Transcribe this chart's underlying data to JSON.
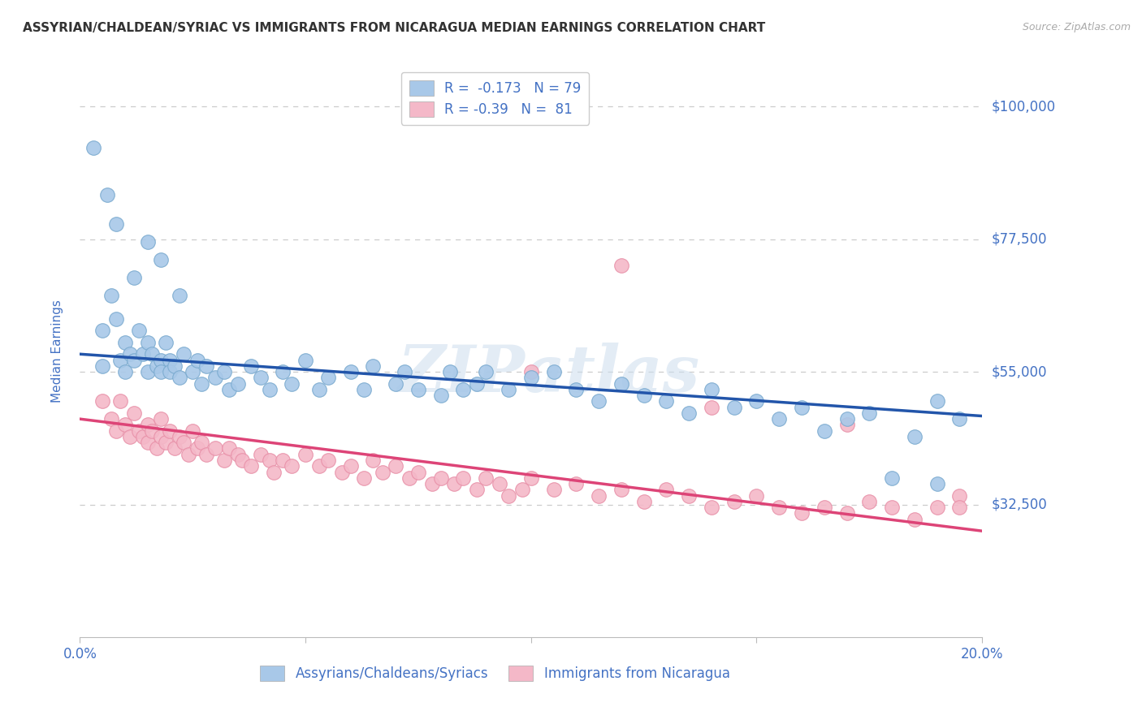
{
  "title": "ASSYRIAN/CHALDEAN/SYRIAC VS IMMIGRANTS FROM NICARAGUA MEDIAN EARNINGS CORRELATION CHART",
  "source": "Source: ZipAtlas.com",
  "ylabel": "Median Earnings",
  "x_min": 0.0,
  "x_max": 0.2,
  "y_min": 10000,
  "y_max": 107000,
  "y_ticks": [
    32500,
    55000,
    77500,
    100000
  ],
  "y_tick_labels": [
    "$32,500",
    "$55,000",
    "$77,500",
    "$100,000"
  ],
  "x_ticks": [
    0.0,
    0.05,
    0.1,
    0.15,
    0.2
  ],
  "blue_R": -0.173,
  "blue_N": 79,
  "pink_R": -0.39,
  "pink_N": 81,
  "blue_label": "Assyrians/Chaldeans/Syriacs",
  "pink_label": "Immigrants from Nicaragua",
  "blue_color": "#a8c8e8",
  "pink_color": "#f4b8c8",
  "blue_edge_color": "#7aaacf",
  "pink_edge_color": "#e890a8",
  "blue_line_color": "#2255aa",
  "pink_line_color": "#dd4477",
  "title_color": "#333333",
  "axis_label_color": "#4472c4",
  "tick_label_color": "#4472c4",
  "watermark_text": "ZIPatlas",
  "background_color": "#ffffff",
  "grid_color": "#cccccc",
  "blue_line_x0": 0.0,
  "blue_line_x1": 0.2,
  "blue_line_y0": 58000,
  "blue_line_y1": 47500,
  "pink_line_x0": 0.0,
  "pink_line_x1": 0.2,
  "pink_line_y0": 47000,
  "pink_line_y1": 28000,
  "blue_scatter_x": [
    0.005,
    0.005,
    0.007,
    0.008,
    0.009,
    0.01,
    0.01,
    0.011,
    0.012,
    0.013,
    0.014,
    0.015,
    0.015,
    0.016,
    0.017,
    0.018,
    0.018,
    0.019,
    0.02,
    0.02,
    0.021,
    0.022,
    0.023,
    0.025,
    0.026,
    0.027,
    0.028,
    0.03,
    0.032,
    0.033,
    0.035,
    0.038,
    0.04,
    0.042,
    0.045,
    0.047,
    0.05,
    0.053,
    0.055,
    0.06,
    0.063,
    0.065,
    0.07,
    0.072,
    0.075,
    0.08,
    0.082,
    0.085,
    0.088,
    0.09,
    0.095,
    0.1,
    0.105,
    0.11,
    0.115,
    0.12,
    0.125,
    0.13,
    0.135,
    0.14,
    0.145,
    0.15,
    0.155,
    0.16,
    0.165,
    0.17,
    0.175,
    0.18,
    0.185,
    0.19,
    0.195,
    0.003,
    0.006,
    0.008,
    0.012,
    0.015,
    0.018,
    0.022,
    0.19
  ],
  "blue_scatter_y": [
    62000,
    56000,
    68000,
    64000,
    57000,
    55000,
    60000,
    58000,
    57000,
    62000,
    58000,
    60000,
    55000,
    58000,
    56000,
    57000,
    55000,
    60000,
    57000,
    55000,
    56000,
    54000,
    58000,
    55000,
    57000,
    53000,
    56000,
    54000,
    55000,
    52000,
    53000,
    56000,
    54000,
    52000,
    55000,
    53000,
    57000,
    52000,
    54000,
    55000,
    52000,
    56000,
    53000,
    55000,
    52000,
    51000,
    55000,
    52000,
    53000,
    55000,
    52000,
    54000,
    55000,
    52000,
    50000,
    53000,
    51000,
    50000,
    48000,
    52000,
    49000,
    50000,
    47000,
    49000,
    45000,
    47000,
    48000,
    37000,
    44000,
    50000,
    47000,
    93000,
    85000,
    80000,
    71000,
    77000,
    74000,
    68000,
    36000
  ],
  "pink_scatter_x": [
    0.005,
    0.007,
    0.008,
    0.009,
    0.01,
    0.011,
    0.012,
    0.013,
    0.014,
    0.015,
    0.015,
    0.016,
    0.017,
    0.018,
    0.018,
    0.019,
    0.02,
    0.021,
    0.022,
    0.023,
    0.024,
    0.025,
    0.026,
    0.027,
    0.028,
    0.03,
    0.032,
    0.033,
    0.035,
    0.036,
    0.038,
    0.04,
    0.042,
    0.043,
    0.045,
    0.047,
    0.05,
    0.053,
    0.055,
    0.058,
    0.06,
    0.063,
    0.065,
    0.067,
    0.07,
    0.073,
    0.075,
    0.078,
    0.08,
    0.083,
    0.085,
    0.088,
    0.09,
    0.093,
    0.095,
    0.098,
    0.1,
    0.105,
    0.11,
    0.115,
    0.12,
    0.125,
    0.13,
    0.135,
    0.14,
    0.145,
    0.15,
    0.155,
    0.16,
    0.165,
    0.17,
    0.175,
    0.18,
    0.185,
    0.19,
    0.195,
    0.12,
    0.14,
    0.17,
    0.1,
    0.195
  ],
  "pink_scatter_y": [
    50000,
    47000,
    45000,
    50000,
    46000,
    44000,
    48000,
    45000,
    44000,
    46000,
    43000,
    45000,
    42000,
    44000,
    47000,
    43000,
    45000,
    42000,
    44000,
    43000,
    41000,
    45000,
    42000,
    43000,
    41000,
    42000,
    40000,
    42000,
    41000,
    40000,
    39000,
    41000,
    40000,
    38000,
    40000,
    39000,
    41000,
    39000,
    40000,
    38000,
    39000,
    37000,
    40000,
    38000,
    39000,
    37000,
    38000,
    36000,
    37000,
    36000,
    37000,
    35000,
    37000,
    36000,
    34000,
    35000,
    37000,
    35000,
    36000,
    34000,
    35000,
    33000,
    35000,
    34000,
    32000,
    33000,
    34000,
    32000,
    31000,
    32000,
    31000,
    33000,
    32000,
    30000,
    32000,
    34000,
    73000,
    49000,
    46000,
    55000,
    32000
  ]
}
